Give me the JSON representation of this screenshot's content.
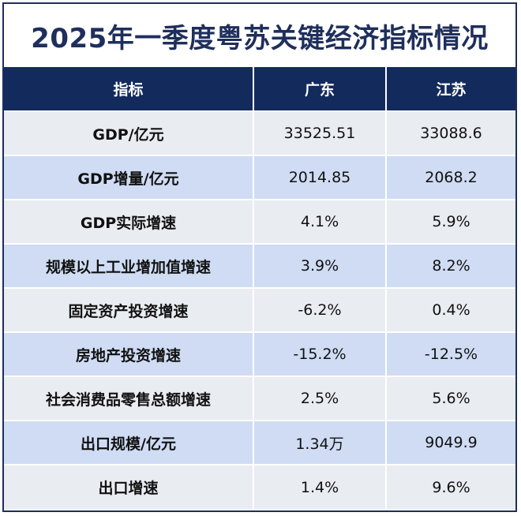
{
  "title": "2025年一季度粤苏关键经济指标情况",
  "headers": [
    "指标",
    "广东",
    "江苏"
  ],
  "rows": [
    {
      "label": "GDP/亿元",
      "guangdong": "33525.51",
      "jiangsu": "33088.6"
    },
    {
      "label": "GDP增量/亿元",
      "guangdong": "2014.85",
      "jiangsu": "2068.2"
    },
    {
      "label": "GDP实际增速",
      "guangdong": "4.1%",
      "jiangsu": "5.9%"
    },
    {
      "label": "规模以上工业增加值增速",
      "guangdong": "3.9%",
      "jiangsu": "8.2%"
    },
    {
      "label": "固定资产投资增速",
      "guangdong": "-6.2%",
      "jiangsu": "0.4%"
    },
    {
      "label": "房地产投资增速",
      "guangdong": "-15.2%",
      "jiangsu": "-12.5%"
    },
    {
      "label": "社会消费品零售总额增速",
      "guangdong": "2.5%",
      "jiangsu": "5.6%"
    },
    {
      "label": "出口规模/亿元",
      "guangdong": "1.34万",
      "jiangsu": "9049.9"
    },
    {
      "label": "出口增速",
      "guangdong": "1.4%",
      "jiangsu": "9.6%"
    }
  ],
  "colors": {
    "title_text": "#1f2f5c",
    "header_bg": "#132a5c",
    "row_light": "#e9ecf1",
    "row_blue": "#cfdcf4",
    "border": "#1e2f5a"
  }
}
